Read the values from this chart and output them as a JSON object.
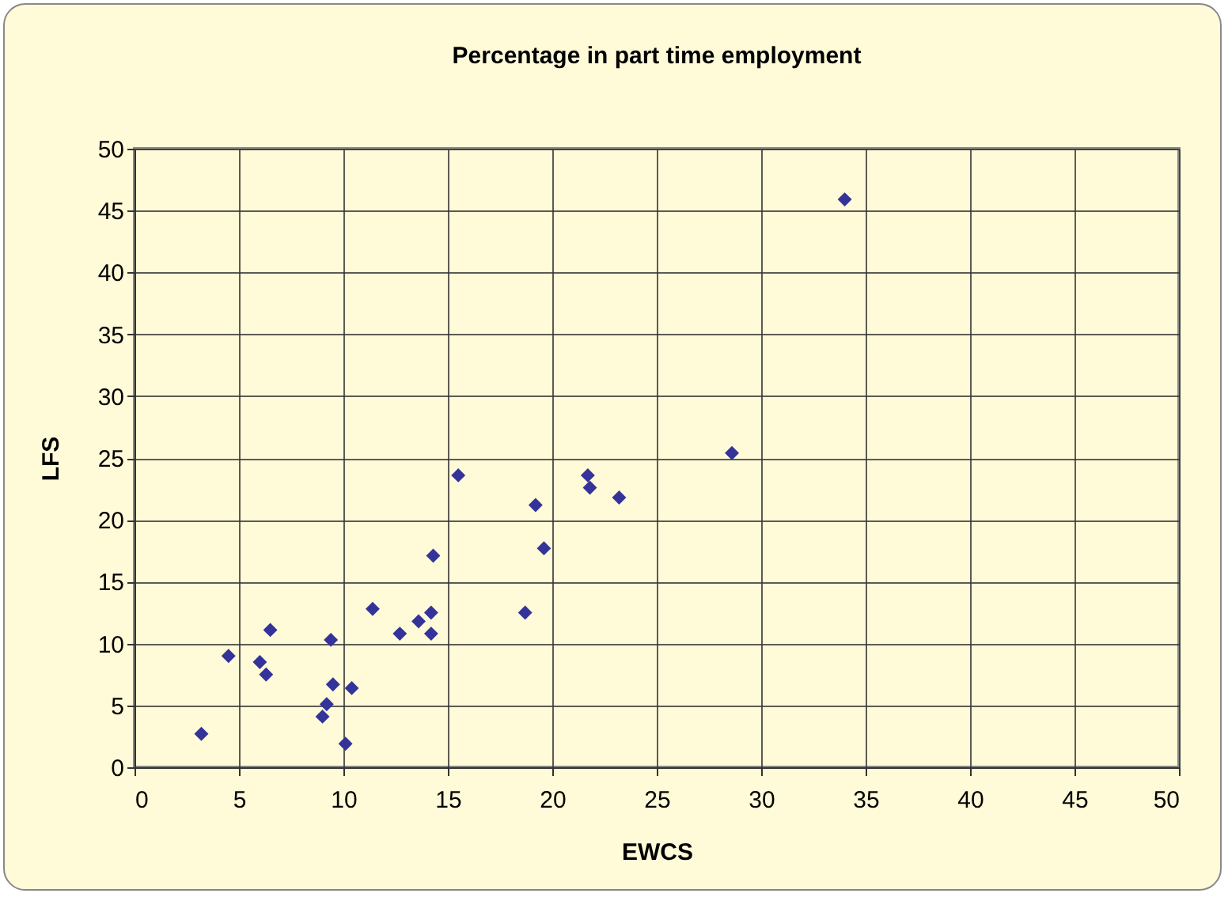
{
  "chart_data": {
    "type": "scatter",
    "title": "Percentage in part time employment",
    "xlabel": "EWCS",
    "ylabel": "LFS",
    "x": [
      3.2,
      4.5,
      6.0,
      6.3,
      6.5,
      9.4,
      9.0,
      9.2,
      9.5,
      10.1,
      10.4,
      11.4,
      12.7,
      13.6,
      14.2,
      14.2,
      14.3,
      15.5,
      18.7,
      19.2,
      19.6,
      21.7,
      21.8,
      23.2,
      28.6,
      34.0
    ],
    "series": [
      {
        "color": "#333399",
        "values": [
          2.7,
          9.0,
          8.5,
          7.5,
          11.1,
          10.3,
          4.1,
          5.1,
          6.7,
          1.9,
          6.4,
          12.8,
          10.8,
          11.8,
          10.8,
          12.5,
          17.1,
          23.6,
          12.5,
          21.2,
          17.7,
          23.6,
          22.6,
          21.8,
          25.4,
          45.9
        ]
      }
    ],
    "xlim": [
      0,
      50
    ],
    "xticks": [
      0,
      5,
      10,
      15,
      20,
      25,
      30,
      35,
      40,
      45,
      50
    ],
    "ylim": [
      0,
      50
    ],
    "yticks": [
      0,
      5,
      10,
      15,
      20,
      25,
      30,
      35,
      40,
      45,
      50
    ],
    "grid": true,
    "marker": "diamond",
    "legend": false
  }
}
